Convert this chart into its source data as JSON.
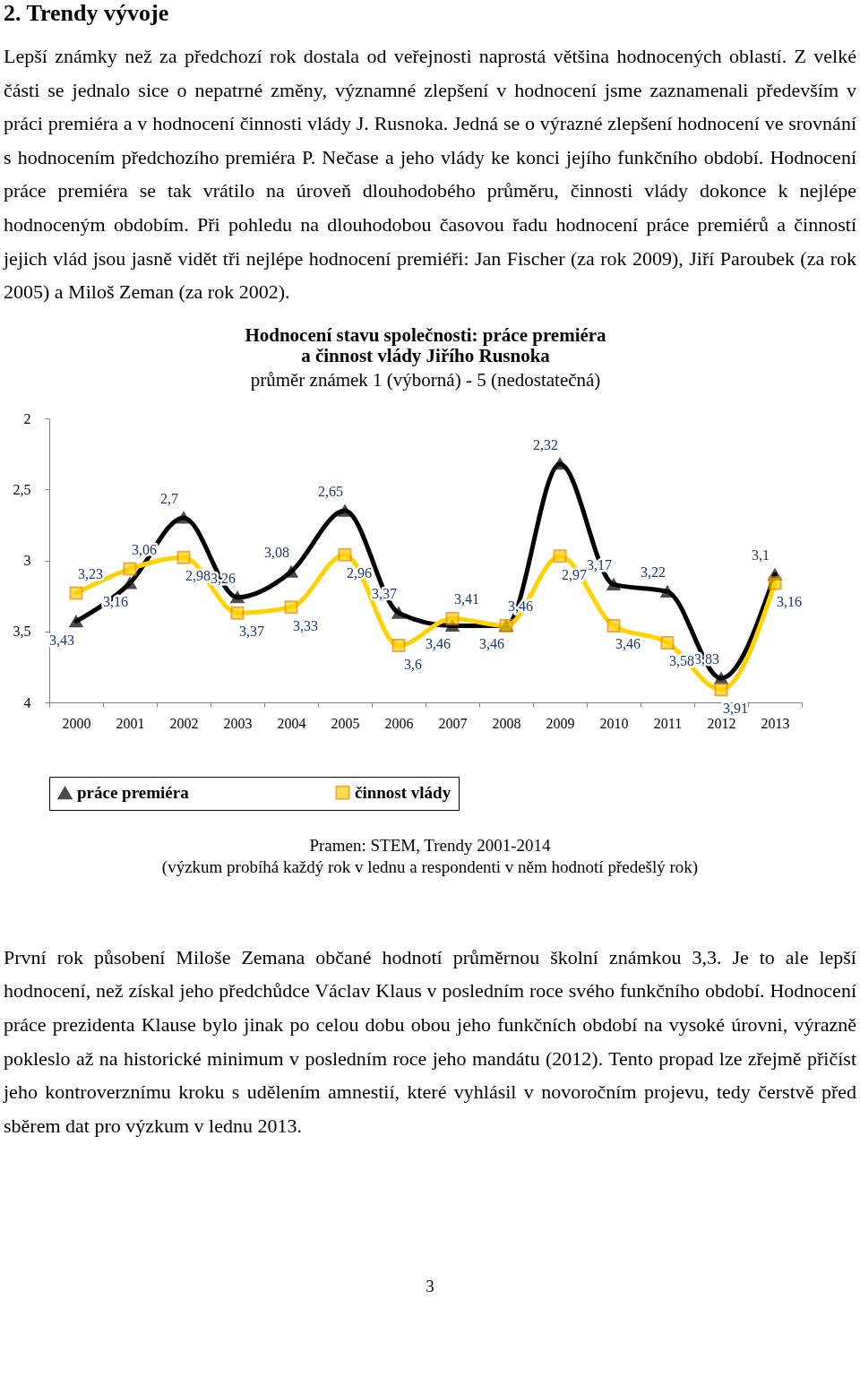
{
  "chart_data": {
    "type": "line",
    "title": "Hodnocení stavu společnosti: práce premiéra\na činnost vlády Jiřího Rusnoka",
    "subtitle": "průměr známek 1 (výborná) - 5 (nedostatečná)",
    "categories": [
      "2000",
      "2001",
      "2002",
      "2003",
      "2004",
      "2005",
      "2006",
      "2007",
      "2008",
      "2009",
      "2010",
      "2011",
      "2012",
      "2013"
    ],
    "series": [
      {
        "name": "práce premiéra",
        "color": "#000000",
        "marker": "triangle",
        "values": [
          3.43,
          3.16,
          2.7,
          3.26,
          3.08,
          2.65,
          3.37,
          3.46,
          3.46,
          2.32,
          3.17,
          3.22,
          3.83,
          3.1
        ],
        "value_labels": [
          "3,43",
          "3,16",
          "2,7",
          "3,26",
          "3,08",
          "2,65",
          "3,37",
          "3,46",
          "3,46",
          "2,32",
          "3,17",
          "3,22",
          "3,83",
          "3,1"
        ]
      },
      {
        "name": "činnost vlády",
        "color": "#ffd200",
        "marker": "square",
        "values": [
          3.23,
          3.06,
          2.98,
          3.37,
          3.33,
          2.96,
          3.6,
          3.41,
          3.46,
          2.97,
          3.46,
          3.58,
          3.91,
          3.16
        ],
        "value_labels": [
          "3,23",
          "3,06",
          "2,98",
          "3,37",
          "3,33",
          "2,96",
          "3,6",
          "3,41",
          "3,46",
          "2,97",
          "3,46",
          "3,58",
          "3,91",
          "3,16"
        ]
      }
    ],
    "ylim": [
      4,
      2
    ],
    "yticks": [
      {
        "value": 2,
        "label": "2"
      },
      {
        "value": 2.5,
        "label": "2,5"
      },
      {
        "value": 3,
        "label": "3"
      },
      {
        "value": 3.5,
        "label": "3,5"
      },
      {
        "value": 4,
        "label": "4"
      }
    ],
    "legend": "bottom",
    "grid": false,
    "line_style": "solid",
    "annotations": [
      "2. Trendy vývoje",
      "Lepší známky než za předchozí rok dostala od veřejnosti naprostá většina hodnocených oblastí. Z velké části se jednalo sice o nepatrné změny, významné zlepšení v hodnocení jsme zaznamenali především v práci premiéra a v hodnocení činnosti vlády J. Rusnoka. Jedná se o výrazné zlepšení hodnocení ve srovnání s hodnocením předchozího premiéra P. Nečase a jeho vlády ke konci jejího funkčního období. Hodnocení práce premiéra se tak vrátilo na úroveň dlouhodobého průměru, činnosti vlády dokonce k nejlépe hodnoceným obdobím. Při pohledu na dlouhodobou časovou řadu hodnocení práce premiérů a činností jejich vlád jsou jasně vidět tři nejlépe hodnocení premiéři: Jan Fischer (za rok 2009), Jiří Paroubek (za rok 2005) a Miloš Zeman (za rok 2002).",
      "Pramen: STEM, Trendy 2001-2014",
      "(výzkum probíhá každý rok v lednu a respondenti v něm hodnotí předešlý rok)",
      "První rok působení Miloše Zemana občané hodnotí průměrnou školní známkou 3,3. Je to ale lepší hodnocení, než získal jeho předchůdce Václav Klaus v posledním roce svého funkčního období. Hodnocení práce prezidenta Klause bylo jinak po celou dobu obou jeho funkčních období na vysoké úrovni, výrazně pokleslo až na historické minimum v posledním roce jeho mandátu (2012). Tento propad lze zřejmě přičíst jeho kontroverznímu kroku s udělením amnestií, které vyhlásil v novoročním projevu, tedy čerstvě před sběrem dat pro výzkum v lednu 2013.",
      "3"
    ]
  }
}
